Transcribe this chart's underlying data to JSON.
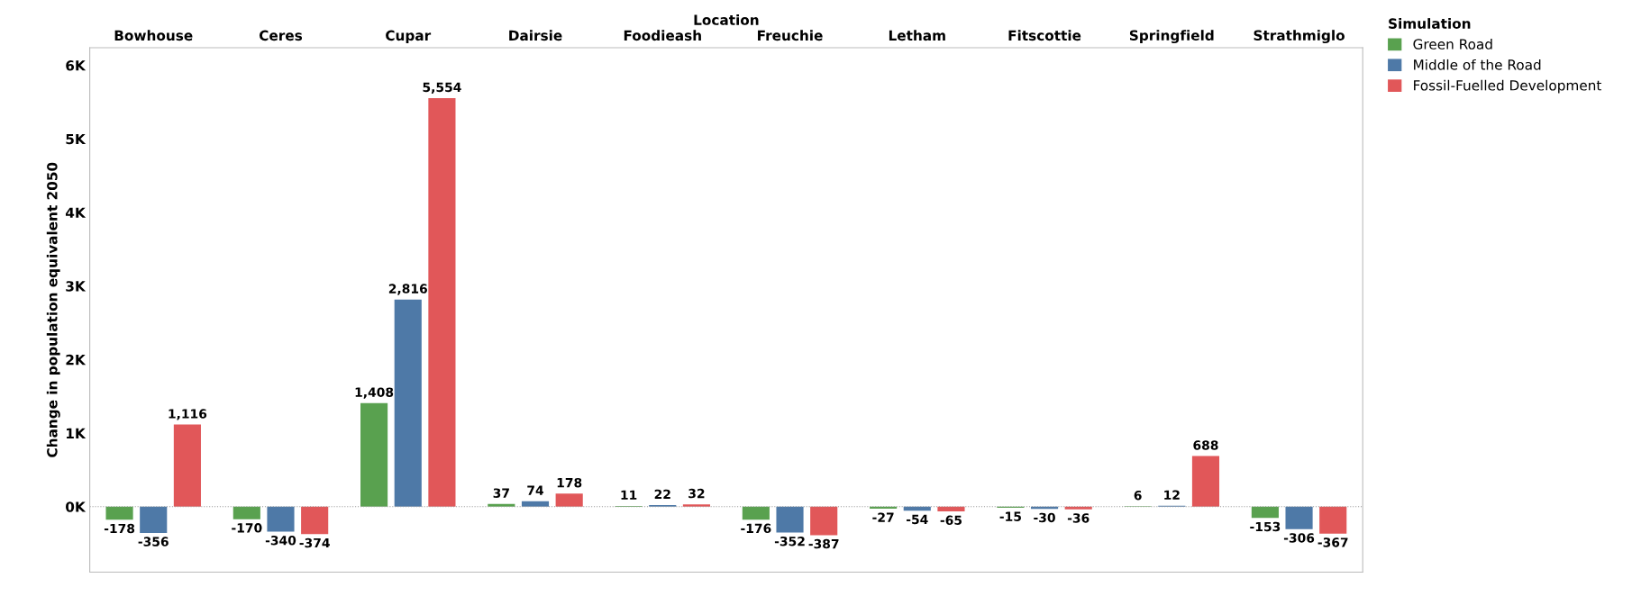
{
  "chart_data": {
    "type": "bar",
    "xlabel": "Location",
    "ylabel": "Change in population equivalent 2050",
    "legend_title": "Simulation",
    "legend": "top right",
    "categories": [
      "Bowhouse",
      "Ceres",
      "Cupar",
      "Dairsie",
      "Foodieash",
      "Freuchie",
      "Letham",
      "Fitscottie",
      "Springfield",
      "Strathmiglo"
    ],
    "series": [
      {
        "name": "Green Road",
        "color": "#59a14f",
        "values": [
          -178,
          -170,
          1408,
          37,
          11,
          -176,
          -27,
          -15,
          6,
          -153
        ],
        "value_labels": [
          "-178",
          "-170",
          "1,408",
          "37",
          "11",
          "-176",
          "-27",
          "-15",
          "6",
          "-153"
        ]
      },
      {
        "name": "Middle of the Road",
        "color": "#4e79a7",
        "values": [
          -356,
          -340,
          2816,
          74,
          22,
          -352,
          -54,
          -30,
          12,
          -306
        ],
        "value_labels": [
          "-356",
          "-340",
          "2,816",
          "74",
          "22",
          "-352",
          "-54",
          "-30",
          "12",
          "-306"
        ]
      },
      {
        "name": "Fossil-Fuelled Development",
        "color": "#e15759",
        "values": [
          1116,
          -374,
          5554,
          178,
          32,
          -387,
          -65,
          -36,
          688,
          -367
        ],
        "value_labels": [
          "1,116",
          "-374",
          "5,554",
          "178",
          "32",
          "-387",
          "-65",
          "-36",
          "688",
          "-367"
        ]
      }
    ],
    "ylim": [
      -890,
      6240
    ],
    "yticks": [
      {
        "value": 0,
        "label": "0K"
      },
      {
        "value": 1000,
        "label": "1K"
      },
      {
        "value": 2000,
        "label": "2K"
      },
      {
        "value": 3000,
        "label": "3K"
      },
      {
        "value": 4000,
        "label": "4K"
      },
      {
        "value": 5000,
        "label": "5K"
      },
      {
        "value": 6000,
        "label": "6K"
      }
    ],
    "ref_lines": [
      {
        "axis": "y",
        "value": 0,
        "color": "#999999",
        "line_style": "dotted"
      }
    ],
    "grid": false
  }
}
